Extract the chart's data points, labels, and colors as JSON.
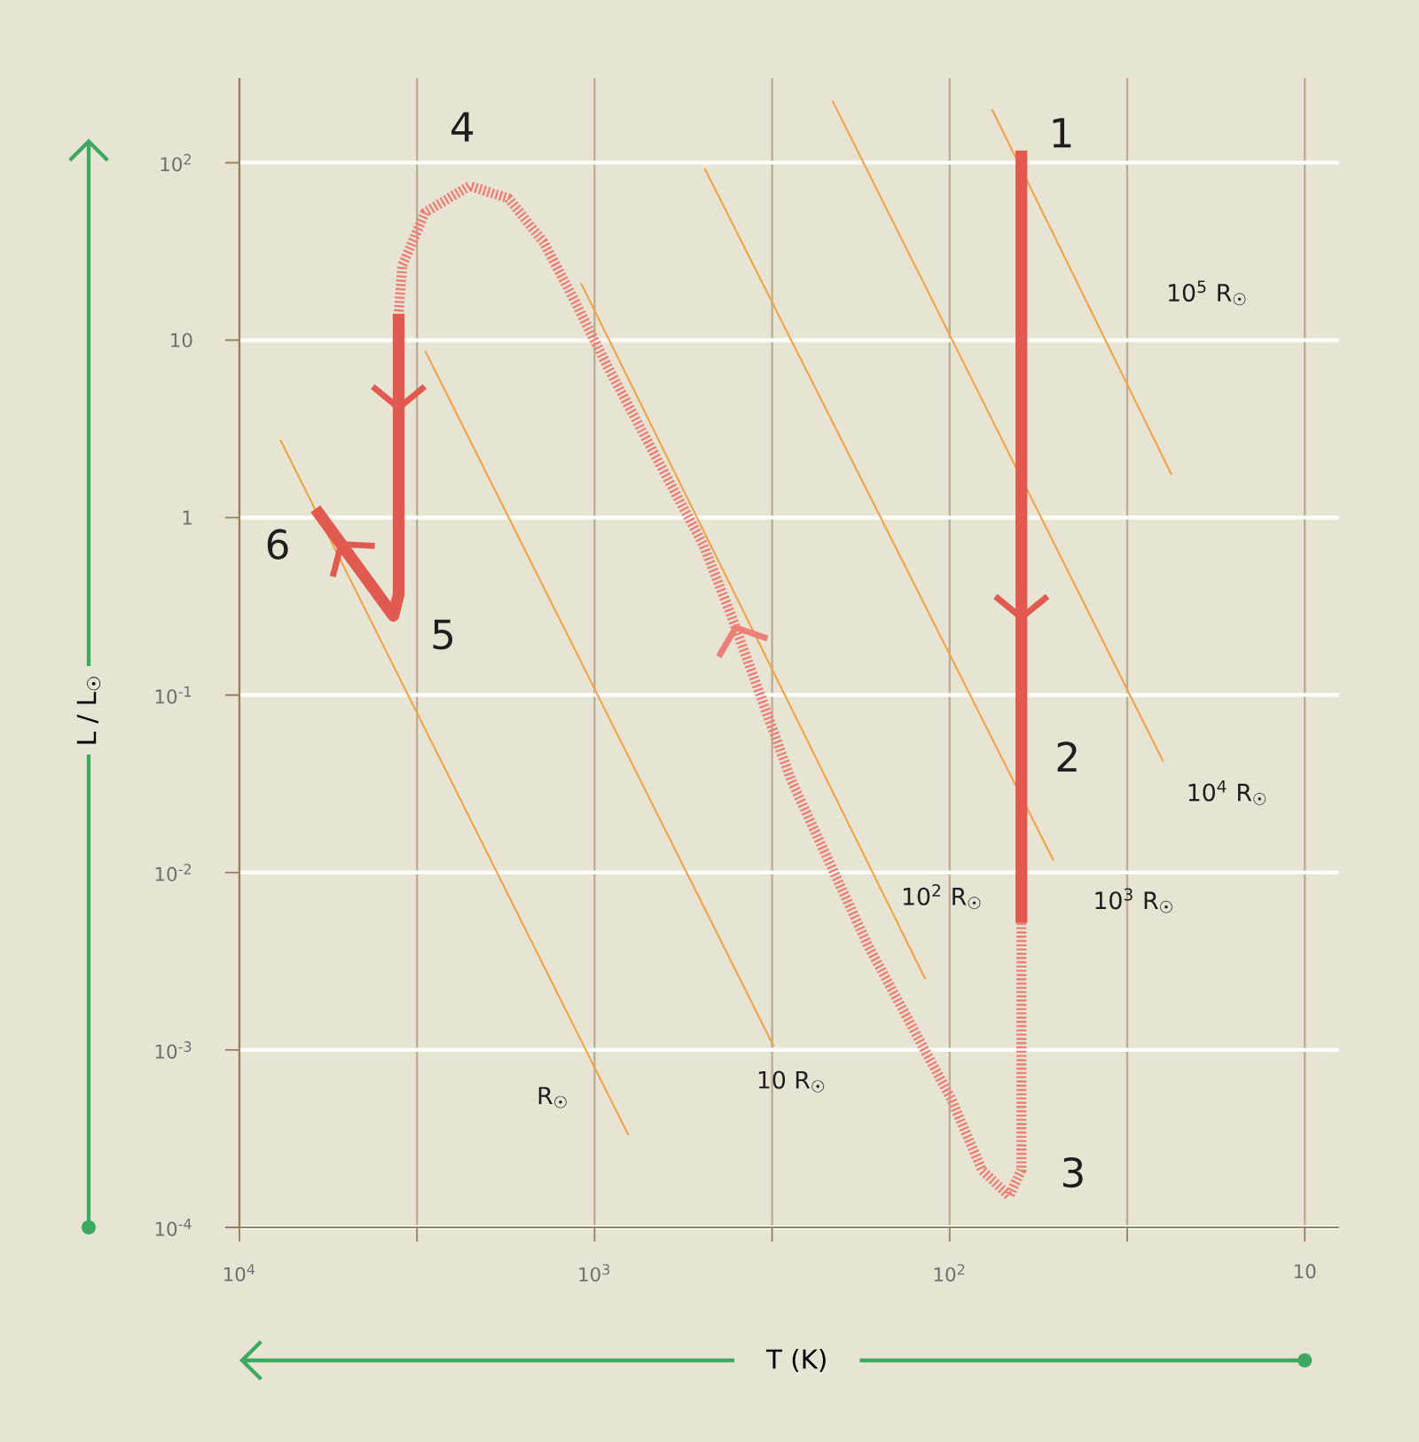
{
  "chart_data": {
    "type": "line",
    "xlabel": "T (K)",
    "ylabel": "L / L$_{☉}$",
    "log": "xy",
    "grid": true,
    "marker": "none",
    "xlim": [
      10000,
      8
    ],
    "ylim": [
      0.0001,
      300
    ],
    "xticks": [
      {
        "value": 10000,
        "label": "10$^{4}$"
      },
      {
        "value": 3162,
        "label": null
      },
      {
        "value": 1000,
        "label": "10$^{3}$"
      },
      {
        "value": 316.2,
        "label": null
      },
      {
        "value": 100,
        "label": "10$^{2}$"
      },
      {
        "value": 31.62,
        "label": null
      },
      10
    ],
    "yticks": [
      {
        "value": 0.0001,
        "label": "10$^{-4}$"
      },
      {
        "value": 0.001,
        "label": "10$^{-3}$"
      },
      {
        "value": 0.01,
        "label": "10$^{-2}$"
      },
      {
        "value": 0.1,
        "label": "10$^{-1}$"
      },
      1,
      10,
      {
        "value": 100,
        "label": "10$^{2}$"
      }
    ],
    "series": [
      {
        "color": "#f0a040",
        "x": [
          7680,
          802
        ],
        "values": [
          2.75,
          0.00033
        ]
      },
      {
        "color": "#f0a040",
        "x": [
          3000,
          313
        ],
        "values": [
          8.7,
          0.00105
        ]
      },
      {
        "color": "#f0a040",
        "x": [
          1092,
          117
        ],
        "values": [
          21,
          0.0025
        ]
      },
      {
        "color": "#f0a040",
        "x": [
          490,
          51
        ],
        "values": [
          93,
          0.0117
        ]
      },
      {
        "color": "#f0a040",
        "x": [
          214,
          25
        ],
        "values": [
          224,
          0.042
        ]
      },
      {
        "color": "#f0a040",
        "x": [
          76,
          23.7
        ],
        "values": [
          200,
          1.74
        ]
      },
      {
        "color": "#e05a50",
        "line_style": "solid",
        "x": [
          62.8,
          62.8
        ],
        "values": [
          117,
          0.0052
        ]
      },
      {
        "color": "#ea8078",
        "line_style": "dotted",
        "x": [
          62.8,
          62.8,
          68,
          81,
          99,
          170,
          279,
          412,
          495,
          675,
          919,
          1157,
          1390,
          1748,
          2251,
          2999,
          3480,
          3561
        ],
        "values": [
          0.0052,
          0.00021,
          0.00015,
          0.00021,
          0.00053,
          0.0039,
          0.033,
          0.28,
          0.71,
          2.24,
          7.1,
          17.8,
          35.5,
          63,
          74,
          52.5,
          26.3,
          14.1
        ]
      },
      {
        "color": "#e05a50",
        "line_style": "solid",
        "x": [
          3561,
          3561,
          3686,
          6108
        ],
        "values": [
          14.1,
          0.37,
          0.28,
          1.12
        ]
      }
    ],
    "annotations": [
      {
        "text": "1",
        "x": 62.8,
        "y": 117
      },
      {
        "text": "2",
        "x": 62.8,
        "y": 0.045
      },
      {
        "text": "3",
        "x": 68,
        "y": 0.00015
      },
      {
        "text": "4",
        "x": 2251,
        "y": 74
      },
      {
        "text": "5",
        "x": 3686,
        "y": 0.28
      },
      {
        "text": "6",
        "x": 6108,
        "y": 1.12
      },
      {
        "text": "R$_{☉}$",
        "x": 802,
        "y": 0.00033
      },
      {
        "text": "10 R$_{☉}$",
        "x": 313,
        "y": 0.00105
      },
      {
        "text": "10$^{2}$ R$_{☉}$",
        "x": 117,
        "y": 0.0025
      },
      {
        "text": "10$^{3}$ R$_{☉}$",
        "x": 51,
        "y": 0.0117
      },
      {
        "text": "10$^{4}$ R$_{☉}$",
        "x": 25,
        "y": 0.042
      },
      "10$^{5}$ R$_{☉}$"
    ]
  }
}
